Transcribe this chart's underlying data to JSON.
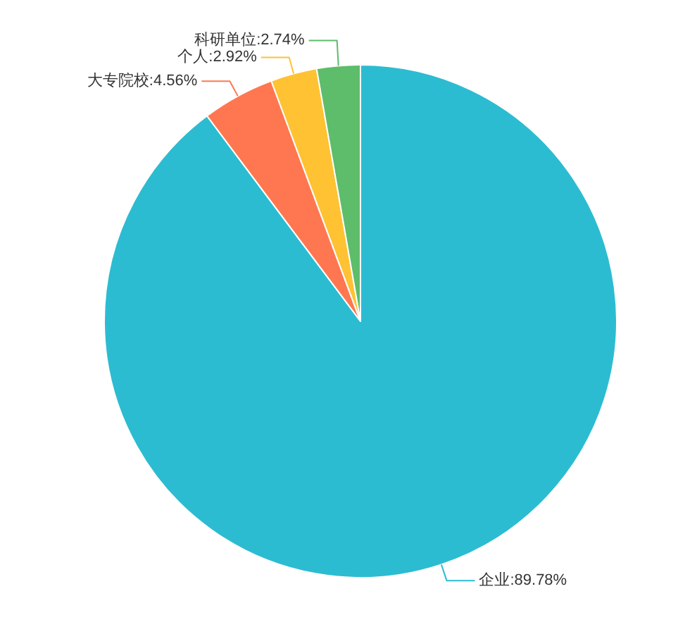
{
  "chart_data": {
    "type": "pie",
    "categories": [
      "企业",
      "大专院校",
      "个人",
      "科研单位"
    ],
    "values": [
      89.78,
      4.56,
      2.92,
      2.74
    ],
    "value_labels": [
      "89.78%",
      "4.56%",
      "2.92%",
      "2.74%"
    ],
    "colors": [
      "#2cbcd1",
      "#ff7750",
      "#fec233",
      "#5dbd6a"
    ]
  }
}
